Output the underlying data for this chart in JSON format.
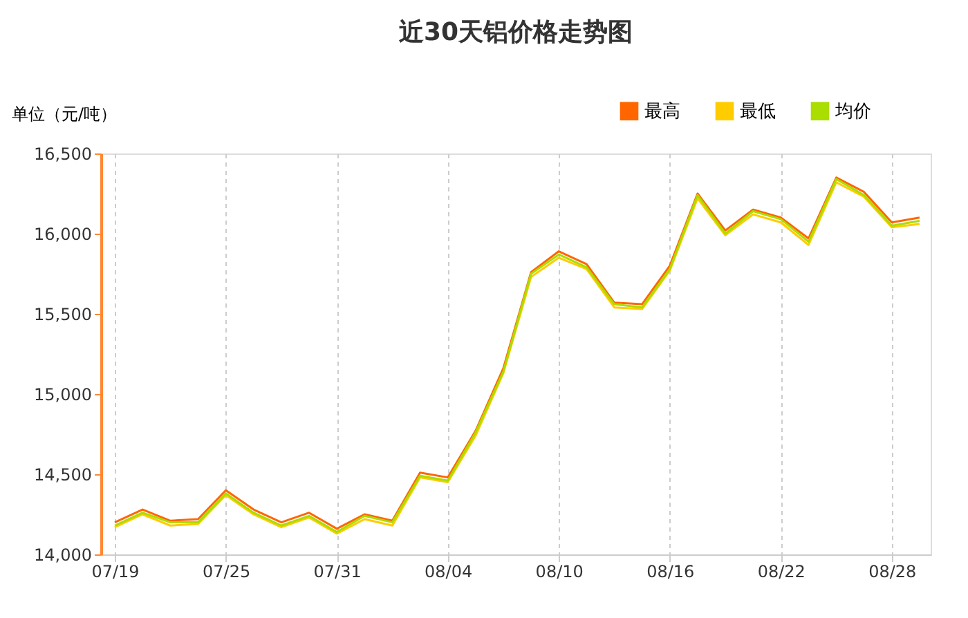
{
  "chart_data": {
    "type": "line",
    "title": "近30天铝价格走势图",
    "ylabel": "单位（元/吨）",
    "categories": [
      "07/19",
      null,
      null,
      null,
      "07/25",
      null,
      null,
      null,
      "07/31",
      null,
      null,
      null,
      "08/04",
      null,
      null,
      null,
      "08/10",
      null,
      null,
      null,
      "08/16",
      null,
      null,
      null,
      "08/22",
      null,
      null,
      null,
      "08/28",
      null
    ],
    "series": [
      {
        "name": "最高",
        "color": "#ff6600",
        "values": [
          14200,
          14280,
          14210,
          14220,
          14400,
          14280,
          14200,
          14260,
          14160,
          14250,
          14210,
          14510,
          14480,
          14770,
          15160,
          15760,
          15890,
          15810,
          15570,
          15560,
          15800,
          16250,
          16020,
          16150,
          16100,
          15970,
          16350,
          16260,
          16070,
          16100
        ]
      },
      {
        "name": "最低",
        "color": "#ffcc00",
        "values": [
          14170,
          14250,
          14180,
          14190,
          14370,
          14250,
          14170,
          14230,
          14130,
          14220,
          14180,
          14480,
          14450,
          14740,
          15130,
          15730,
          15850,
          15780,
          15540,
          15530,
          15770,
          16220,
          15990,
          16120,
          16070,
          15930,
          16320,
          16230,
          16040,
          16060
        ]
      },
      {
        "name": "均价",
        "color": "#aadd00",
        "values": [
          14180,
          14260,
          14200,
          14200,
          14380,
          14260,
          14180,
          14240,
          14140,
          14240,
          14200,
          14490,
          14460,
          14760,
          15140,
          15750,
          15870,
          15790,
          15560,
          15540,
          15780,
          16240,
          16000,
          16140,
          16090,
          15950,
          16340,
          16240,
          16050,
          16080
        ]
      }
    ],
    "ylim": [
      14000,
      16500
    ],
    "yticks": [
      {
        "value": 14000,
        "label": "14,000"
      },
      {
        "value": 14500,
        "label": "14,500"
      },
      {
        "value": 15000,
        "label": "15,000"
      },
      {
        "value": 15500,
        "label": "15,500"
      },
      {
        "value": 16000,
        "label": "16,000"
      },
      {
        "value": 16500,
        "label": "16,500"
      }
    ],
    "grid": "x",
    "legend": "top right",
    "marker": "none",
    "line_style": "solid"
  }
}
